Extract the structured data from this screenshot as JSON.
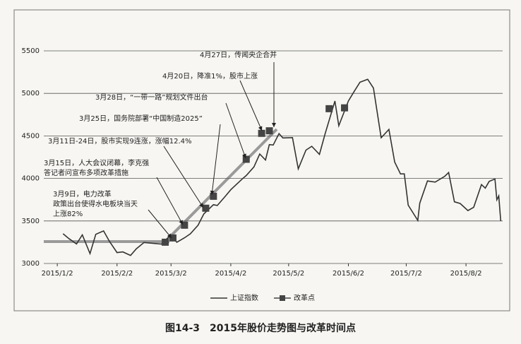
{
  "chart_data": {
    "type": "line",
    "caption": "图14-3　2015年股价走势图与改革时间点",
    "xlim": [
      "2014/12/26",
      "2015/8/21"
    ],
    "xticks": [
      "2015/1/2",
      "2015/2/2",
      "2015/3/2",
      "2015/4/2",
      "2015/5/2",
      "2015/6/2",
      "2015/7/2",
      "2015/8/2"
    ],
    "ylim": [
      3000,
      5500
    ],
    "yticks": [
      3000,
      3500,
      4000,
      4500,
      5000,
      5500
    ],
    "grid": true,
    "legend": "bottom",
    "series": [
      {
        "name": "上证指数",
        "color": "#333333",
        "x": [
          "2015/1/5",
          "2015/1/8",
          "2015/1/12",
          "2015/1/15",
          "2015/1/19",
          "2015/1/22",
          "2015/1/26",
          "2015/1/29",
          "2015/2/2",
          "2015/2/5",
          "2015/2/9",
          "2015/2/12",
          "2015/2/16",
          "2015/2/25",
          "2015/3/2",
          "2015/3/5",
          "2015/3/9",
          "2015/3/12",
          "2015/3/16",
          "2015/3/19",
          "2015/3/24",
          "2015/3/26",
          "2015/3/30",
          "2015/4/2",
          "2015/4/8",
          "2015/4/10",
          "2015/4/14",
          "2015/4/17",
          "2015/4/20",
          "2015/4/22",
          "2015/4/24",
          "2015/4/27",
          "2015/4/29",
          "2015/5/4",
          "2015/5/7",
          "2015/5/11",
          "2015/5/14",
          "2015/5/18",
          "2015/5/21",
          "2015/5/26",
          "2015/5/28",
          "2015/6/2",
          "2015/6/5",
          "2015/6/8",
          "2015/6/12",
          "2015/6/15",
          "2015/6/19",
          "2015/6/23",
          "2015/6/26",
          "2015/6/29",
          "2015/7/1",
          "2015/7/3",
          "2015/7/8",
          "2015/7/9",
          "2015/7/13",
          "2015/7/17",
          "2015/7/22",
          "2015/7/24",
          "2015/7/27",
          "2015/7/30",
          "2015/8/3",
          "2015/8/6",
          "2015/8/10",
          "2015/8/12",
          "2015/8/14",
          "2015/8/17",
          "2015/8/18",
          "2015/8/19",
          "2015/8/20"
        ],
        "values": [
          3350,
          3293,
          3229,
          3336,
          3116,
          3343,
          3383,
          3262,
          3128,
          3136,
          3095,
          3173,
          3247,
          3228,
          3336,
          3249,
          3302,
          3349,
          3449,
          3582,
          3691,
          3682,
          3786,
          3867,
          3995,
          4034,
          4135,
          4287,
          4217,
          4398,
          4393,
          4527,
          4476,
          4480,
          4112,
          4333,
          4378,
          4283,
          4530,
          4910,
          4620,
          4910,
          5023,
          5131,
          5166,
          5062,
          4478,
          4576,
          4192,
          4053,
          4053,
          3686,
          3507,
          3709,
          3970,
          3957,
          4026,
          4070,
          3725,
          3705,
          3622,
          3661,
          3928,
          3886,
          3965,
          3993,
          3748,
          3794,
          3500
        ]
      },
      {
        "name": "改革点",
        "color": "#444444",
        "x": [
          "2015/2/27",
          "2015/3/3",
          "2015/3/9",
          "2015/3/20",
          "2015/3/24",
          "2015/4/10",
          "2015/4/18",
          "2015/4/22",
          "2015/5/23",
          "2015/5/31"
        ],
        "values": [
          3250,
          3300,
          3450,
          3650,
          3790,
          4225,
          4530,
          4560,
          4820,
          4830
        ]
      }
    ],
    "annotations": [
      {
        "lines": [
          "4月27日，传闻央企合并"
        ]
      },
      {
        "lines": [
          "4月20日，降准1%，股市上涨"
        ]
      },
      {
        "lines": [
          "3月28日，“一带一路”规划文件出台"
        ]
      },
      {
        "lines": [
          "3月25日，国务院部署“中国制造2025”"
        ]
      },
      {
        "lines": [
          "3月11日-24日，股市实现9连涨，涨幅12.4%"
        ]
      },
      {
        "lines": [
          "3月15日，人大会议闭幕，李克强",
          "答记者问宣布多项改革措施"
        ]
      },
      {
        "lines": [
          "3月9日，电力改革",
          "政策出台使得水电板块当天",
          "上涨82%"
        ]
      }
    ]
  }
}
